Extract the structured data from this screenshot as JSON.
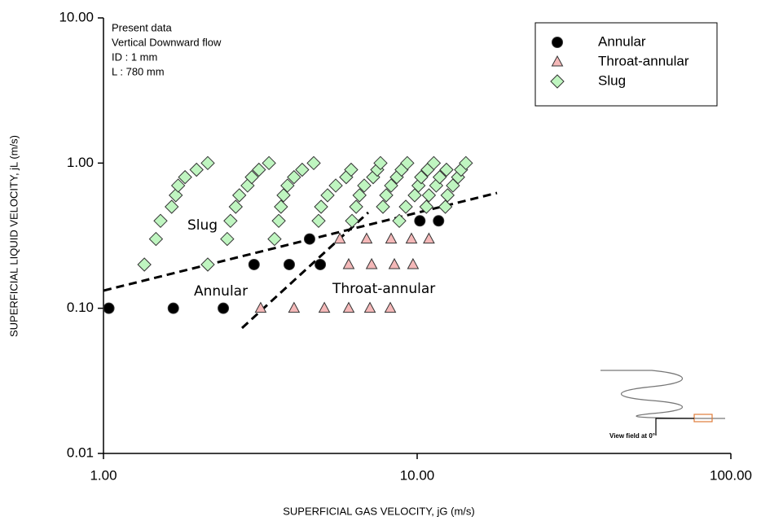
{
  "chart_data": {
    "type": "scatter",
    "xlabel": "SUPERFICIAL GAS VELOCITY, jG (m/s)",
    "ylabel": "SUPERFICIAL LIQUID VELOCITY, jL (m/s)",
    "xscale": "log",
    "yscale": "log",
    "xlim": [
      1,
      100
    ],
    "ylim": [
      0.01,
      10
    ],
    "xticks": [
      {
        "value": 1,
        "label": "1.00"
      },
      {
        "value": 10,
        "label": "10.00"
      },
      {
        "value": 100,
        "label": "100.00"
      }
    ],
    "yticks": [
      {
        "value": 0.01,
        "label": "0.01"
      },
      {
        "value": 0.1,
        "label": "0.10"
      },
      {
        "value": 1,
        "label": "1.00"
      },
      {
        "value": 10,
        "label": "10.00"
      }
    ],
    "legend": "upper right",
    "info_lines": [
      "Present data",
      "Vertical Downward flow",
      "ID : 1 mm",
      "L   : 780 mm"
    ],
    "annotations": [
      "Slug",
      "Annular",
      "Throat-annular"
    ],
    "inset_label": "View field at 0°",
    "series": [
      {
        "name": "Annular",
        "marker": "circle",
        "color": "#000000",
        "x": [
          1.04,
          1.67,
          2.41,
          3.02,
          3.91,
          4.54,
          4.91,
          10.2,
          11.7
        ],
        "y": [
          0.1,
          0.1,
          0.1,
          0.2,
          0.2,
          0.3,
          0.2,
          0.4,
          0.4
        ]
      },
      {
        "name": "Throat-annular",
        "marker": "triangle",
        "color": "#f4b8b8",
        "x": [
          3.17,
          4.05,
          5.06,
          6.05,
          7.07,
          8.21,
          5.67,
          6.9,
          8.26,
          9.59,
          10.9,
          6.05,
          7.16,
          8.46,
          9.7
        ],
        "y": [
          0.1,
          0.1,
          0.1,
          0.1,
          0.1,
          0.1,
          0.3,
          0.3,
          0.3,
          0.3,
          0.3,
          0.2,
          0.2,
          0.2,
          0.2
        ]
      },
      {
        "name": "Slug",
        "marker": "diamond",
        "color": "#bff5c0",
        "x": [
          1.35,
          1.47,
          1.52,
          1.65,
          1.7,
          1.73,
          1.82,
          1.98,
          2.15,
          2.15,
          2.48,
          2.54,
          2.64,
          2.71,
          2.88,
          2.97,
          3.13,
          3.37,
          3.51,
          3.62,
          3.68,
          3.75,
          3.86,
          4.05,
          4.3,
          4.68,
          4.85,
          4.94,
          5.18,
          5.5,
          5.94,
          6.16,
          6.2,
          6.39,
          6.55,
          6.78,
          7.24,
          7.46,
          7.64,
          7.78,
          7.97,
          8.26,
          8.61,
          8.92,
          9.3,
          8.77,
          9.2,
          9.82,
          10.1,
          10.3,
          10.8,
          11.3,
          10.7,
          10.9,
          11.5,
          11.8,
          12.4,
          12.3,
          12.5,
          13.0,
          13.5,
          13.8,
          14.3
        ],
        "y": [
          0.2,
          0.3,
          0.4,
          0.5,
          0.6,
          0.7,
          0.8,
          0.9,
          1.0,
          0.2,
          0.3,
          0.4,
          0.5,
          0.6,
          0.7,
          0.8,
          0.9,
          1.0,
          0.3,
          0.4,
          0.5,
          0.6,
          0.7,
          0.8,
          0.9,
          1.0,
          0.4,
          0.5,
          0.6,
          0.7,
          0.8,
          0.9,
          0.4,
          0.5,
          0.6,
          0.7,
          0.8,
          0.9,
          1.0,
          0.5,
          0.6,
          0.7,
          0.8,
          0.9,
          1.0,
          0.4,
          0.5,
          0.6,
          0.7,
          0.8,
          0.9,
          1.0,
          0.5,
          0.6,
          0.7,
          0.8,
          0.9,
          0.5,
          0.6,
          0.7,
          0.8,
          0.9,
          1.0
        ]
      }
    ]
  }
}
